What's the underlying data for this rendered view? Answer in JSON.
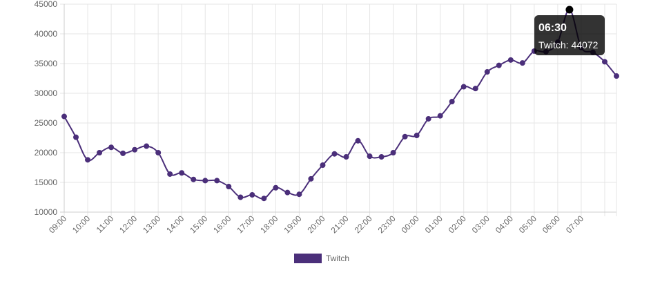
{
  "chart_data": {
    "type": "line",
    "x": [
      "09:00",
      "09:30",
      "10:00",
      "10:30",
      "11:00",
      "11:30",
      "12:00",
      "12:30",
      "13:00",
      "13:30",
      "14:00",
      "14:30",
      "15:00",
      "15:30",
      "16:00",
      "16:30",
      "17:00",
      "17:30",
      "18:00",
      "18:30",
      "19:00",
      "19:30",
      "20:00",
      "20:30",
      "21:00",
      "21:30",
      "22:00",
      "22:30",
      "23:00",
      "23:30",
      "00:00",
      "00:30",
      "01:00",
      "01:30",
      "02:00",
      "02:30",
      "03:00",
      "03:30",
      "04:00",
      "04:30",
      "05:00",
      "05:30",
      "06:00",
      "06:30",
      "07:00",
      "07:30",
      "08:00",
      "08:30"
    ],
    "x_tick_labels": [
      "09:00",
      "10:00",
      "11:00",
      "12:00",
      "13:00",
      "14:00",
      "15:00",
      "16:00",
      "17:00",
      "18:00",
      "19:00",
      "20:00",
      "21:00",
      "22:00",
      "23:00",
      "00:00",
      "01:00",
      "02:00",
      "03:00",
      "04:00",
      "05:00",
      "06:00",
      "07:00"
    ],
    "series": [
      {
        "name": "Twitch",
        "color": "#4b2f7a",
        "values": [
          26100,
          22600,
          18800,
          20000,
          20900,
          19900,
          20500,
          21100,
          20000,
          16400,
          16600,
          15500,
          15300,
          15300,
          14300,
          12500,
          12900,
          12300,
          14100,
          13300,
          13000,
          15600,
          17900,
          19800,
          19300,
          22000,
          19400,
          19300,
          20000,
          22700,
          22900,
          25700,
          26200,
          28600,
          31100,
          30800,
          33600,
          34700,
          35600,
          35100,
          37100,
          37000,
          38600,
          44072,
          37700,
          36900,
          35300,
          32900
        ]
      }
    ],
    "ylim": [
      10000,
      45000
    ],
    "y_ticks": [
      "10000",
      "15000",
      "20000",
      "25000",
      "30000",
      "35000",
      "40000",
      "45000"
    ],
    "grid": true,
    "legend_position": "bottom",
    "active_point_index": 43
  },
  "tooltip": {
    "title": "06:30",
    "body": "Twitch: 44072"
  },
  "legend": {
    "label": "Twitch"
  }
}
